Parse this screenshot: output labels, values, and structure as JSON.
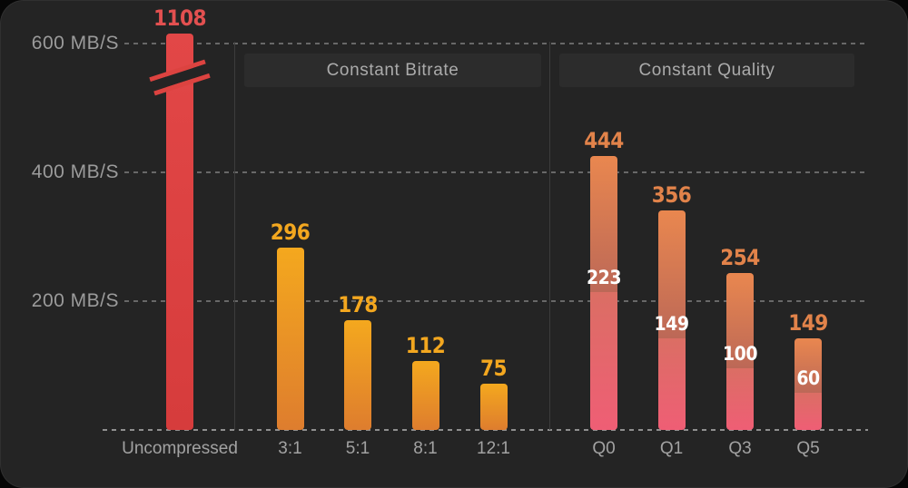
{
  "chart_data": {
    "type": "bar",
    "title": "",
    "unit": "MB/S",
    "ylim": [
      0,
      620
    ],
    "grid": "horizontal dashed gridlines on dark background",
    "y_ticks": [
      {
        "value": 600,
        "label": "600 MB/S"
      },
      {
        "value": 400,
        "label": "400 MB/S"
      },
      {
        "value": 200,
        "label": "200 MB/S"
      }
    ],
    "sections": [
      {
        "label": "Constant Bitrate",
        "bars": [
          "3:1",
          "5:1",
          "8:1",
          "12:1"
        ]
      },
      {
        "label": "Constant Quality",
        "bars": [
          "Q0",
          "Q1",
          "Q3",
          "Q5"
        ]
      }
    ],
    "axis_break": {
      "bar": "Uncompressed",
      "note": "bar clipped with diagonal break marks; actual value 1108 exceeds axis max"
    },
    "bars": [
      {
        "label": "Uncompressed",
        "value": 1108,
        "theme": "red",
        "clipped": true
      },
      {
        "label": "3:1",
        "value": 296,
        "theme": "amber"
      },
      {
        "label": "5:1",
        "value": 178,
        "theme": "amber"
      },
      {
        "label": "8:1",
        "value": 112,
        "theme": "amber"
      },
      {
        "label": "12:1",
        "value": 75,
        "theme": "amber"
      },
      {
        "label": "Q0",
        "value": 444,
        "secondary_value": 223,
        "theme": "coral"
      },
      {
        "label": "Q1",
        "value": 356,
        "secondary_value": 149,
        "theme": "coral"
      },
      {
        "label": "Q3",
        "value": 254,
        "secondary_value": 100,
        "theme": "coral"
      },
      {
        "label": "Q5",
        "value": 149,
        "secondary_value": 60,
        "theme": "coral"
      }
    ],
    "colors": {
      "red_bar": "#DC4340",
      "red_value_label": "#E35050",
      "amber_bar_top": "#F4A81E",
      "amber_bar_bottom": "#DE7D2E",
      "amber_value_label": "#F3A71F",
      "coral_bar_top": "#E9874F",
      "coral_bar_mid": "#BC6857",
      "coral_lower_segment_top": "#DB6E64",
      "coral_lower_segment_bottom": "#EF5E75",
      "coral_value_label": "#E2834A",
      "split_value_label": "#FFFFFF",
      "background": "#242424",
      "section_box": "#2C2C2C",
      "axis_text": "#9B9B9B"
    }
  }
}
